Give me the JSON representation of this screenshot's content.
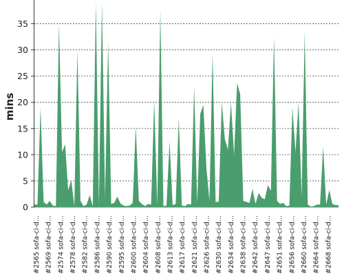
{
  "chart_data": {
    "type": "area",
    "ylabel": "mins",
    "xlabel": "",
    "ylim": [
      0,
      39
    ],
    "yticks": [
      0,
      5,
      10,
      15,
      20,
      25,
      30,
      35
    ],
    "grid": "horizontal dashed",
    "colors": {
      "fill": "#4a9e6e",
      "grid": "#444444",
      "axis": "#333333"
    },
    "x_tick_labels": [
      "#2565 sofa-ci-d...",
      "#2569 sofa-ci-d...",
      "#2574 sofa-ci-d...",
      "#2578 sofa-ci-d...",
      "#2582 sofa-ci-d...",
      "#2586 sofa-ci-d...",
      "#2590 sofa-ci-d...",
      "#2595 sofa-ci-d...",
      "#2600 sofa-ci-d...",
      "#2604 sofa-ci-d...",
      "#2608 sofa-ci-d...",
      "#2613 sofa-ci-d...",
      "#2617 sofa-ci-d...",
      "#2621 sofa-ci-d...",
      "#2626 sofa-ci-d...",
      "#2630 sofa-ci-d...",
      "#2634 sofa-ci-d...",
      "#2638 sofa-ci-d...",
      "#2642 sofa-ci-d...",
      "#2647 sofa-ci-d...",
      "#2651 sofa-ci-d...",
      "#2656 sofa-ci-d...",
      "#2660 sofa-ci-d...",
      "#2664 sofa-ci-d...",
      "#2668 sofa-ci-d..."
    ],
    "values": [
      0.5,
      0.5,
      19,
      1,
      0.5,
      1.2,
      0.3,
      0.2,
      35,
      10.5,
      12,
      3.2,
      5.2,
      0.2,
      30,
      1.2,
      0.2,
      0.5,
      2.3,
      0.2,
      39,
      0.5,
      39,
      1.8,
      31.5,
      0.6,
      0.8,
      2,
      0.7,
      0.3,
      0.2,
      0.3,
      0.8,
      15.5,
      1.2,
      0.6,
      0.2,
      0.6,
      0.5,
      20.5,
      0.3,
      37.5,
      0.2,
      0.3,
      12.5,
      0.4,
      0.6,
      17,
      0.3,
      0.2,
      0.6,
      0.5,
      23,
      0.8,
      17.8,
      19.5,
      7.5,
      1.2,
      29.5,
      1,
      1,
      20,
      13,
      11,
      20,
      10,
      23.7,
      21.5,
      1.2,
      1.0,
      0.8,
      3.5,
      0.6,
      2.7,
      1.8,
      1.5,
      4.2,
      3.1,
      32.5,
      1.2,
      0.6,
      0.8,
      0.2,
      0.3,
      19,
      10.5,
      20,
      2,
      33.5,
      0.5,
      0.1,
      0.2,
      0.5,
      0.5,
      11.5,
      0.5,
      3.3,
      0.6,
      0.4,
      0.4
    ]
  }
}
